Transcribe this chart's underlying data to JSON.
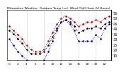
{
  "title": "Milwaukee Weather  Outdoor Temp (vs)  Wind Chill (Last 24 Hours)",
  "bg_color": "#ffffff",
  "plot_bg": "#ffffff",
  "temp_color": "#cc0000",
  "wind_chill_color": "#0000cc",
  "dewpoint_color": "#000000",
  "ylim": [
    10,
    58
  ],
  "yticks": [
    15,
    20,
    25,
    30,
    35,
    40,
    45,
    50,
    55
  ],
  "temp_data": [
    42,
    38,
    34,
    30,
    24,
    20,
    18,
    18,
    20,
    28,
    36,
    44,
    50,
    52,
    50,
    46,
    42,
    44,
    46,
    46,
    48,
    46,
    50,
    52
  ],
  "wind_chill_data": [
    30,
    24,
    18,
    14,
    10,
    8,
    8,
    8,
    10,
    18,
    28,
    38,
    46,
    48,
    44,
    38,
    28,
    28,
    28,
    28,
    34,
    30,
    40,
    44
  ],
  "dewpoint_data": [
    38,
    35,
    30,
    26,
    20,
    16,
    16,
    16,
    18,
    24,
    32,
    40,
    46,
    48,
    46,
    42,
    36,
    38,
    40,
    40,
    42,
    40,
    44,
    46
  ],
  "n_points": 24,
  "vline_positions": [
    4,
    8,
    12,
    16,
    20
  ],
  "ylabel_fontsize": 3.5,
  "xlabel_fontsize": 3,
  "title_fontsize": 3.2,
  "line_width": 0.7,
  "marker_size": 1.8
}
